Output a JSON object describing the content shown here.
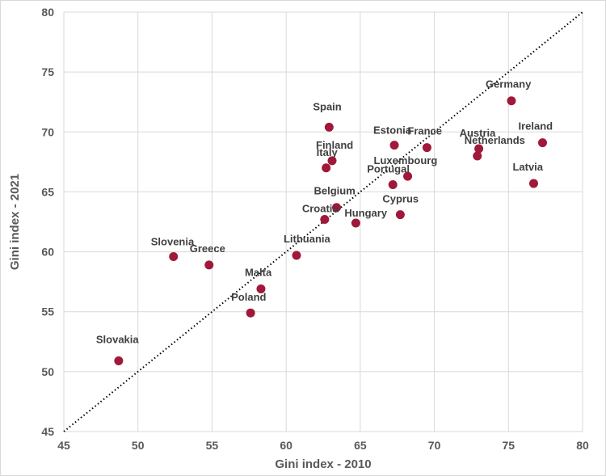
{
  "chart_data": {
    "type": "scatter",
    "title": "",
    "xlabel": "Gini index - 2010",
    "ylabel": "Gini index - 2021",
    "xlim": [
      45,
      80
    ],
    "ylim": [
      45,
      80
    ],
    "xticks": [
      45,
      50,
      55,
      60,
      65,
      70,
      75,
      80
    ],
    "yticks": [
      45,
      50,
      55,
      60,
      65,
      70,
      75,
      80
    ],
    "grid": true,
    "reference_line": {
      "style": "dotted",
      "from": [
        45,
        45
      ],
      "to": [
        80,
        80
      ]
    },
    "marker_color": "#a0183a",
    "points": [
      {
        "label": "Slovakia",
        "x": 48.7,
        "y": 50.9
      },
      {
        "label": "Slovenia",
        "x": 52.4,
        "y": 59.6
      },
      {
        "label": "Greece",
        "x": 54.8,
        "y": 58.9
      },
      {
        "label": "Poland",
        "x": 57.6,
        "y": 54.9
      },
      {
        "label": "Malta",
        "x": 58.3,
        "y": 56.9
      },
      {
        "label": "Lithuania",
        "x": 60.7,
        "y": 59.7
      },
      {
        "label": "Croatia",
        "x": 62.6,
        "y": 62.7
      },
      {
        "label": "Belgium",
        "x": 63.4,
        "y": 63.7
      },
      {
        "label": "Italy",
        "x": 62.7,
        "y": 67.0
      },
      {
        "label": "Finland",
        "x": 63.1,
        "y": 67.6
      },
      {
        "label": "Spain",
        "x": 62.9,
        "y": 70.4
      },
      {
        "label": "Hungary",
        "x": 64.7,
        "y": 62.4
      },
      {
        "label": "Estonia",
        "x": 67.3,
        "y": 68.9
      },
      {
        "label": "Portugal",
        "x": 67.2,
        "y": 65.6
      },
      {
        "label": "Cyprus",
        "x": 67.7,
        "y": 63.1
      },
      {
        "label": "Luxembourg",
        "x": 68.2,
        "y": 66.3
      },
      {
        "label": "France",
        "x": 69.5,
        "y": 68.7
      },
      {
        "label": "Netherlands",
        "x": 72.9,
        "y": 68.0
      },
      {
        "label": "Austria",
        "x": 73.0,
        "y": 68.6
      },
      {
        "label": "Germany",
        "x": 75.2,
        "y": 72.6
      },
      {
        "label": "Latvia",
        "x": 76.7,
        "y": 65.7
      },
      {
        "label": "Ireland",
        "x": 77.3,
        "y": 69.1
      }
    ]
  }
}
